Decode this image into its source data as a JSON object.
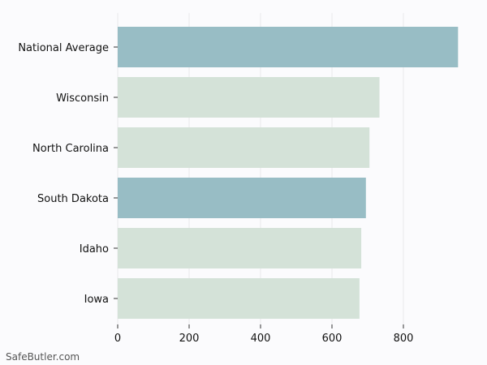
{
  "chart_data": {
    "type": "bar",
    "orientation": "horizontal",
    "categories": [
      "National Average",
      "Wisconsin",
      "North Carolina",
      "South Dakota",
      "Idaho",
      "Iowa"
    ],
    "values": [
      953,
      733,
      705,
      695,
      682,
      677
    ],
    "bar_colors": [
      "#98bdc5",
      "#d4e2d8",
      "#d4e2d8",
      "#98bdc5",
      "#d4e2d8",
      "#d4e2d8"
    ],
    "x_ticks": [
      0,
      200,
      400,
      600,
      800
    ],
    "xlim": [
      0,
      1000
    ],
    "grid": "vertical",
    "legend": "none"
  },
  "watermark": "SafeButler.com",
  "colors": {
    "background": "#fbfbfd",
    "grid": "#e8e8ec",
    "highlight": "#98bdc5",
    "regular": "#d4e2d8"
  }
}
